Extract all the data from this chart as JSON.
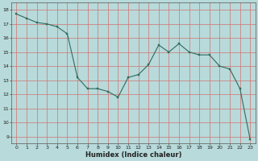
{
  "x": [
    0,
    1,
    2,
    3,
    4,
    5,
    6,
    7,
    8,
    9,
    10,
    11,
    12,
    13,
    14,
    15,
    16,
    17,
    18,
    19,
    20,
    21,
    22,
    23
  ],
  "y": [
    17.7,
    17.4,
    17.1,
    17.0,
    16.8,
    16.3,
    13.2,
    12.4,
    12.4,
    12.2,
    11.8,
    13.2,
    13.4,
    14.1,
    15.5,
    15.0,
    15.6,
    15.0,
    14.8,
    14.8,
    14.0,
    13.8,
    12.4,
    8.8
  ],
  "xlabel": "Humidex (Indice chaleur)",
  "ylim": [
    8.5,
    18.5
  ],
  "xlim": [
    -0.5,
    23.5
  ],
  "yticks": [
    9,
    10,
    11,
    12,
    13,
    14,
    15,
    16,
    17,
    18
  ],
  "xticks": [
    0,
    1,
    2,
    3,
    4,
    5,
    6,
    7,
    8,
    9,
    10,
    11,
    12,
    13,
    14,
    15,
    16,
    17,
    18,
    19,
    20,
    21,
    22,
    23
  ],
  "line_color": "#2e6b5e",
  "marker_color": "#2e6b5e",
  "bg_color": "#b8dada",
  "grid_color_v": "#d47070",
  "grid_color_h": "#d47070",
  "font_color": "#222222",
  "xlabel_fontsize": 6,
  "tick_fontsize": 4.5,
  "linewidth": 0.8,
  "markersize": 2.0
}
